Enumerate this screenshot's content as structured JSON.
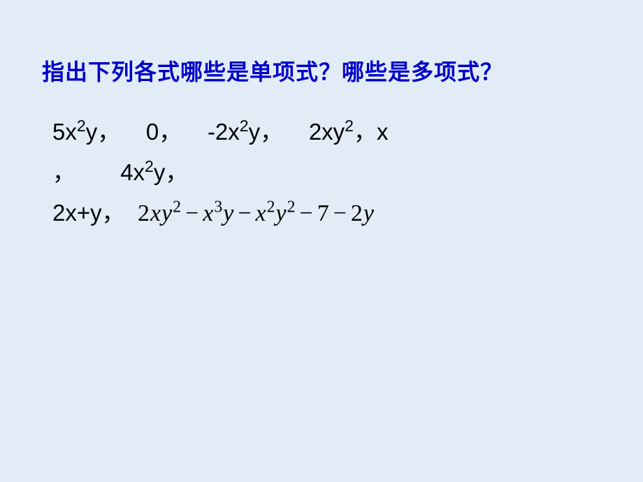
{
  "colors": {
    "background": "#e1ecf7",
    "title": "#0000c8",
    "body_text": "#000000"
  },
  "typography": {
    "title_fontsize": 32,
    "body_fontsize": 33,
    "poly_fontsize": 34,
    "title_weight": "bold",
    "line_height": 1.75
  },
  "title": "指出下列各式哪些是单项式？哪些是多项式？",
  "line1": {
    "t1_coef": "5x",
    "t1_exp": "2",
    "t1_var": "y，",
    "gap1": "    ",
    "t2": "0，",
    "gap2": "    ",
    "t3_coef": "-2x",
    "t3_exp": "2",
    "t3_var": "y，",
    "gap3": "    ",
    "t4_coef": "2xy",
    "t4_exp": "2",
    "t4_tail": "，",
    "t5": "x"
  },
  "line2": {
    "t1": "，",
    "gap1": "       ",
    "t2_coef": "4x",
    "t2_exp": "2",
    "t2_var": "y，"
  },
  "line3": {
    "prefix": "2x+y，  ",
    "p1_coef": "2",
    "p1_var1": "x",
    "p1_var2": "y",
    "p1_exp": "2",
    "op1": "−",
    "p2_var1": "x",
    "p2_exp1": "3",
    "p2_var2": "y",
    "op2": "−",
    "p3_var1": "x",
    "p3_exp1": "2",
    "p3_var2": "y",
    "p3_exp2": "2",
    "op3": "−",
    "p4": "7",
    "op4": "−",
    "p5_coef": "2",
    "p5_var": "y"
  }
}
